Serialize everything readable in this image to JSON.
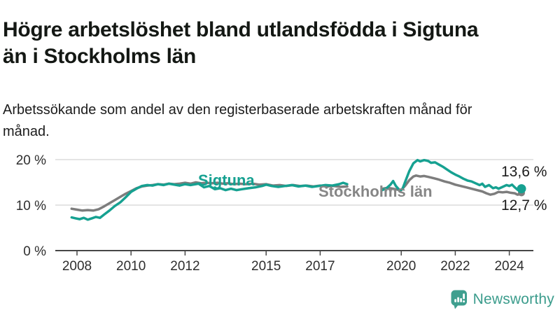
{
  "header": {
    "title": "Högre arbetslöshet bland utlandsfödda i Sigtuna än i Stockholms län",
    "subtitle": "Arbetssökande som andel av den registerbaserade arbetskraften månad för månad."
  },
  "chart_data": {
    "type": "line",
    "title": "Högre arbetslöshet bland utlandsfödda i Sigtuna än i Stockholms län",
    "xlabel": "",
    "ylabel": "Arbetssökande som andel av den registerbaserade arbetskraften",
    "xlim": [
      2007.3,
      2025.1
    ],
    "ylim": [
      0,
      23
    ],
    "grid": "horizontal",
    "legend_position": "inline-labels",
    "x_ticks": [
      {
        "label": "2008",
        "year": 2008
      },
      {
        "label": "2010",
        "year": 2010
      },
      {
        "label": "2012",
        "year": 2012
      },
      {
        "label": "2015",
        "year": 2015
      },
      {
        "label": "2017",
        "year": 2017
      },
      {
        "label": "2020",
        "year": 2020
      },
      {
        "label": "2022",
        "year": 2022
      },
      {
        "label": "2024",
        "year": 2024
      }
    ],
    "y_ticks": [
      {
        "label": "0 %",
        "value": 0
      },
      {
        "label": "10 %",
        "value": 10
      },
      {
        "label": "20 %",
        "value": 20
      }
    ],
    "series": [
      {
        "name": "Stockholms län",
        "color": "#7d7d7d",
        "label_color": "#868686",
        "end_label": "12,7 %",
        "end_value": 12.7,
        "segments": [
          [
            [
              2007.8,
              9.2
            ],
            [
              2008.0,
              9.0
            ],
            [
              2008.2,
              8.8
            ],
            [
              2008.4,
              8.9
            ],
            [
              2008.6,
              8.8
            ],
            [
              2008.8,
              9.1
            ],
            [
              2009.0,
              9.7
            ],
            [
              2009.2,
              10.4
            ],
            [
              2009.4,
              11.1
            ],
            [
              2009.6,
              11.8
            ],
            [
              2009.8,
              12.5
            ],
            [
              2010.0,
              13.1
            ],
            [
              2010.2,
              13.7
            ],
            [
              2010.4,
              14.1
            ],
            [
              2010.6,
              14.3
            ],
            [
              2010.8,
              14.4
            ],
            [
              2011.0,
              14.6
            ],
            [
              2011.2,
              14.5
            ],
            [
              2011.4,
              14.7
            ],
            [
              2011.6,
              14.6
            ],
            [
              2011.8,
              14.7
            ],
            [
              2012.0,
              14.9
            ],
            [
              2012.2,
              14.7
            ],
            [
              2012.4,
              15.0
            ],
            [
              2012.6,
              14.8
            ],
            [
              2012.8,
              14.9
            ],
            [
              2013.0,
              14.8
            ],
            [
              2013.2,
              14.9
            ],
            [
              2013.4,
              14.7
            ],
            [
              2013.6,
              14.8
            ],
            [
              2013.8,
              14.6
            ],
            [
              2014.0,
              14.7
            ],
            [
              2014.25,
              14.6
            ],
            [
              2014.5,
              14.7
            ],
            [
              2014.75,
              14.5
            ],
            [
              2015.0,
              14.6
            ],
            [
              2015.25,
              14.3
            ],
            [
              2015.5,
              14.4
            ],
            [
              2015.75,
              14.2
            ],
            [
              2016.0,
              14.4
            ],
            [
              2016.25,
              14.2
            ],
            [
              2016.5,
              14.3
            ],
            [
              2016.75,
              14.1
            ],
            [
              2017.0,
              14.3
            ],
            [
              2017.25,
              14.1
            ],
            [
              2017.5,
              14.2
            ],
            [
              2017.75,
              14.0
            ],
            [
              2018.0,
              14.1
            ]
          ],
          [
            [
              2019.3,
              13.6
            ],
            [
              2019.5,
              13.8
            ],
            [
              2019.7,
              13.6
            ],
            [
              2019.85,
              13.4
            ],
            [
              2020.0,
              13.3
            ],
            [
              2020.15,
              14.3
            ],
            [
              2020.3,
              15.5
            ],
            [
              2020.45,
              16.3
            ],
            [
              2020.55,
              16.5
            ],
            [
              2020.7,
              16.3
            ],
            [
              2020.85,
              16.4
            ],
            [
              2021.0,
              16.2
            ],
            [
              2021.2,
              15.9
            ],
            [
              2021.4,
              15.6
            ],
            [
              2021.6,
              15.2
            ],
            [
              2021.8,
              14.9
            ],
            [
              2022.0,
              14.5
            ],
            [
              2022.2,
              14.2
            ],
            [
              2022.4,
              13.9
            ],
            [
              2022.6,
              13.6
            ],
            [
              2022.8,
              13.3
            ],
            [
              2023.0,
              13.0
            ],
            [
              2023.15,
              12.6
            ],
            [
              2023.3,
              12.3
            ],
            [
              2023.45,
              12.5
            ],
            [
              2023.6,
              12.9
            ],
            [
              2023.75,
              12.8
            ],
            [
              2023.9,
              12.9
            ],
            [
              2024.05,
              12.7
            ],
            [
              2024.2,
              12.6
            ],
            [
              2024.3,
              12.3
            ],
            [
              2024.4,
              12.4
            ],
            [
              2024.45,
              12.7
            ]
          ]
        ]
      },
      {
        "name": "Sigtuna",
        "color": "#16a191",
        "label_color": "#16a191",
        "end_label": "13,6 %",
        "end_value": 13.6,
        "segments": [
          [
            [
              2007.8,
              7.3
            ],
            [
              2007.95,
              7.1
            ],
            [
              2008.1,
              6.9
            ],
            [
              2008.25,
              7.2
            ],
            [
              2008.4,
              6.8
            ],
            [
              2008.55,
              7.1
            ],
            [
              2008.7,
              7.4
            ],
            [
              2008.85,
              7.2
            ],
            [
              2009.0,
              7.9
            ],
            [
              2009.2,
              8.8
            ],
            [
              2009.4,
              9.8
            ],
            [
              2009.6,
              10.6
            ],
            [
              2009.8,
              11.7
            ],
            [
              2010.0,
              12.9
            ],
            [
              2010.2,
              13.6
            ],
            [
              2010.4,
              14.2
            ],
            [
              2010.6,
              14.4
            ],
            [
              2010.8,
              14.3
            ],
            [
              2011.0,
              14.6
            ],
            [
              2011.2,
              14.4
            ],
            [
              2011.4,
              14.7
            ],
            [
              2011.6,
              14.5
            ],
            [
              2011.8,
              14.3
            ],
            [
              2012.0,
              14.6
            ],
            [
              2012.2,
              14.4
            ],
            [
              2012.5,
              14.7
            ],
            [
              2012.7,
              13.9
            ],
            [
              2012.9,
              14.2
            ],
            [
              2013.1,
              13.5
            ],
            [
              2013.3,
              13.7
            ],
            [
              2013.5,
              13.3
            ],
            [
              2013.7,
              13.6
            ],
            [
              2013.9,
              13.3
            ],
            [
              2014.1,
              13.5
            ],
            [
              2014.35,
              13.7
            ],
            [
              2014.6,
              13.9
            ],
            [
              2014.85,
              14.2
            ],
            [
              2015.0,
              14.5
            ],
            [
              2015.2,
              14.2
            ],
            [
              2015.45,
              14.0
            ],
            [
              2015.7,
              14.2
            ],
            [
              2015.95,
              14.4
            ],
            [
              2016.2,
              14.1
            ],
            [
              2016.45,
              14.3
            ],
            [
              2016.7,
              14.0
            ],
            [
              2016.95,
              14.2
            ],
            [
              2017.2,
              14.4
            ],
            [
              2017.45,
              14.3
            ],
            [
              2017.7,
              14.6
            ],
            [
              2017.85,
              14.9
            ],
            [
              2018.0,
              14.6
            ]
          ],
          [
            [
              2019.3,
              13.3
            ],
            [
              2019.45,
              13.7
            ],
            [
              2019.6,
              14.5
            ],
            [
              2019.7,
              15.3
            ],
            [
              2019.8,
              14.2
            ],
            [
              2019.95,
              13.2
            ],
            [
              2020.05,
              13.6
            ],
            [
              2020.15,
              15.2
            ],
            [
              2020.3,
              17.5
            ],
            [
              2020.45,
              19.2
            ],
            [
              2020.6,
              19.9
            ],
            [
              2020.7,
              19.6
            ],
            [
              2020.85,
              19.9
            ],
            [
              2021.0,
              19.7
            ],
            [
              2021.1,
              19.3
            ],
            [
              2021.25,
              19.4
            ],
            [
              2021.4,
              18.9
            ],
            [
              2021.55,
              18.4
            ],
            [
              2021.7,
              17.8
            ],
            [
              2021.85,
              17.2
            ],
            [
              2022.0,
              16.7
            ],
            [
              2022.15,
              16.3
            ],
            [
              2022.3,
              15.8
            ],
            [
              2022.45,
              15.4
            ],
            [
              2022.6,
              15.2
            ],
            [
              2022.75,
              14.8
            ],
            [
              2022.9,
              14.4
            ],
            [
              2023.0,
              14.7
            ],
            [
              2023.1,
              14.0
            ],
            [
              2023.25,
              14.4
            ],
            [
              2023.4,
              13.7
            ],
            [
              2023.5,
              13.9
            ],
            [
              2023.6,
              13.6
            ],
            [
              2023.75,
              14.0
            ],
            [
              2023.9,
              14.4
            ],
            [
              2024.0,
              14.2
            ],
            [
              2024.1,
              14.5
            ],
            [
              2024.2,
              13.9
            ],
            [
              2024.3,
              13.4
            ],
            [
              2024.38,
              13.1
            ],
            [
              2024.45,
              13.6
            ]
          ]
        ]
      }
    ]
  },
  "branding": {
    "name": "Newsworthy",
    "logo_icon": "bar-chart-speech-bubble",
    "logo_color": "#3f9f8f"
  },
  "colors": {
    "sigtuna": "#16a191",
    "stockholm": "#7d7d7d",
    "gridline": "#dbdbdb",
    "axis": "#474747"
  }
}
